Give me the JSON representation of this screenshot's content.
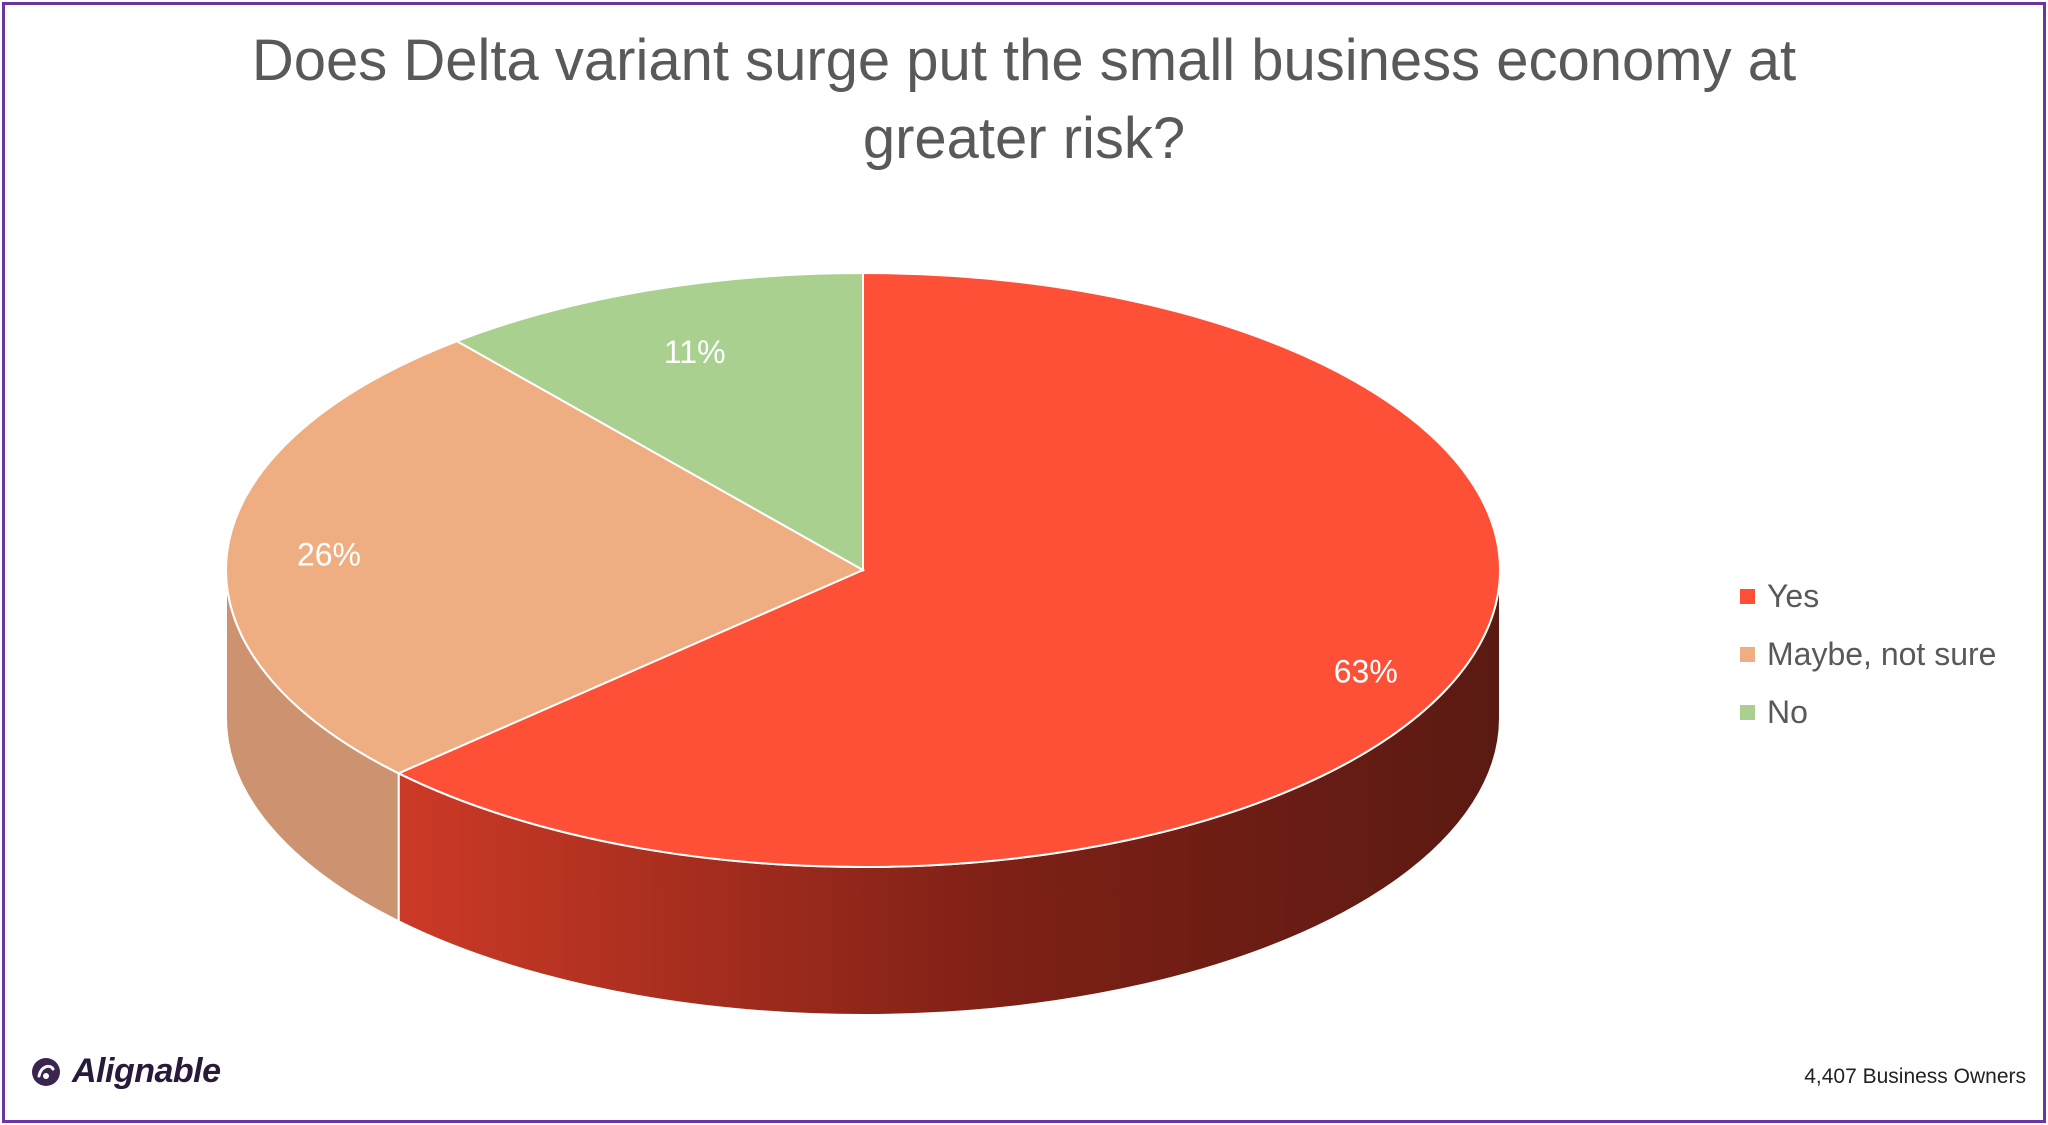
{
  "title_lines": [
    "Does Delta variant surge put the small business economy at",
    "greater risk?"
  ],
  "footer": {
    "brand": "Alignable",
    "note": "4,407 Business Owners"
  },
  "colors": {
    "yes": "#fe4f37",
    "maybe": "#efae82",
    "no": "#a9d08e",
    "frame": "#6b35a4"
  },
  "chart_data": {
    "type": "pie",
    "style": "3d",
    "title": "Does Delta variant surge put the small business economy at greater risk?",
    "categories": [
      "Yes",
      "Maybe, not sure",
      "No"
    ],
    "values": [
      63,
      26,
      11
    ],
    "data_labels": [
      "63%",
      "26%",
      "11%"
    ],
    "legend": "right"
  }
}
